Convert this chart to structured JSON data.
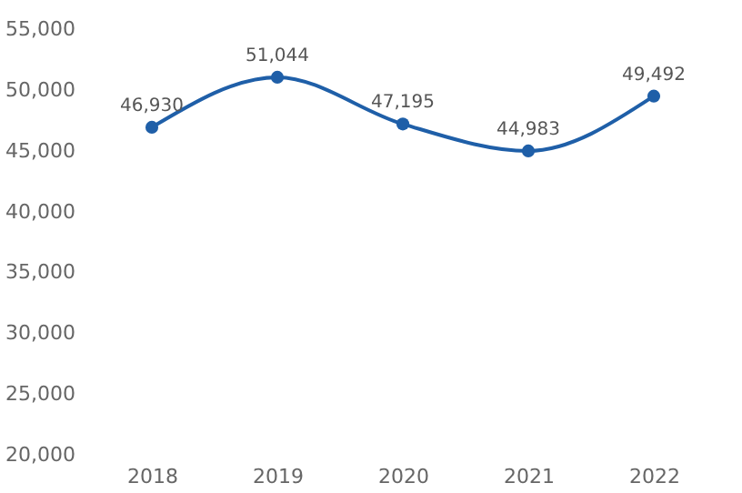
{
  "chart_data": {
    "type": "line",
    "categories": [
      "2018",
      "2019",
      "2020",
      "2021",
      "2022"
    ],
    "series": [
      {
        "color": "#1f5fa8",
        "values": [
          46930,
          51044,
          47195,
          44983,
          49492
        ],
        "value_labels": [
          "46,930",
          "51,044",
          "47,195",
          "44,983",
          "49,492"
        ]
      }
    ],
    "ylim": [
      20000,
      55000
    ],
    "yticks": [
      {
        "value": 20000,
        "label": "20,000"
      },
      {
        "value": 25000,
        "label": "25,000"
      },
      {
        "value": 30000,
        "label": "30,000"
      },
      {
        "value": 35000,
        "label": "35,000"
      },
      {
        "value": 40000,
        "label": "40,000"
      },
      {
        "value": 45000,
        "label": "45,000"
      },
      {
        "value": 50000,
        "label": "50,000"
      },
      {
        "value": 55000,
        "label": "55,000"
      }
    ],
    "grid": false,
    "legend": false,
    "marker": "circle",
    "line_style": "solid"
  }
}
